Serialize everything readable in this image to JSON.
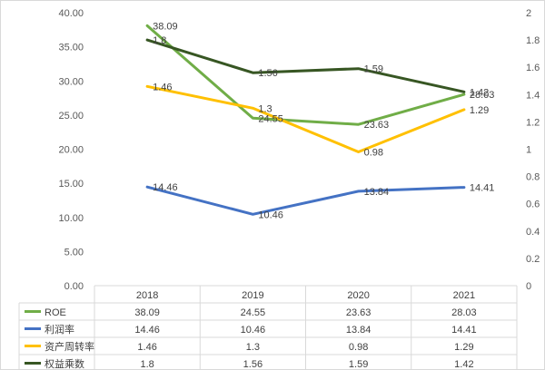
{
  "chart_data": {
    "type": "line",
    "categories": [
      "2018",
      "2019",
      "2020",
      "2021"
    ],
    "y_left": {
      "ylim": [
        0,
        40
      ],
      "ticks": [
        "0.00",
        "5.00",
        "10.00",
        "15.00",
        "20.00",
        "25.00",
        "30.00",
        "35.00",
        "40.00"
      ]
    },
    "y_right": {
      "ylim": [
        0,
        2
      ],
      "ticks": [
        "0",
        "0.2",
        "0.4",
        "0.6",
        "0.8",
        "1",
        "1.2",
        "1.4",
        "1.6",
        "1.8",
        "2"
      ]
    },
    "series": [
      {
        "name": "ROE",
        "axis": "left",
        "color": "#70ad47",
        "values": [
          38.09,
          24.55,
          23.63,
          28.03
        ],
        "labels": [
          "38.09",
          "24.55",
          "23.63",
          "28.03"
        ]
      },
      {
        "name": "利润率",
        "axis": "left",
        "color": "#4472c4",
        "values": [
          14.46,
          10.46,
          13.84,
          14.41
        ],
        "labels": [
          "14.46",
          "10.46",
          "13.84",
          "14.41"
        ]
      },
      {
        "name": "资产周转率",
        "axis": "right",
        "color": "#ffc000",
        "values": [
          1.46,
          1.3,
          0.98,
          1.29
        ],
        "labels": [
          "1.46",
          "1.3",
          "0.98",
          "1.29"
        ]
      },
      {
        "name": "权益乘数",
        "axis": "right",
        "color": "#375623",
        "values": [
          1.8,
          1.56,
          1.59,
          1.42
        ],
        "labels": [
          "1.8",
          "1.56",
          "1.59",
          "1.42"
        ]
      }
    ],
    "grid": false,
    "legend": "data-table-bottom"
  }
}
